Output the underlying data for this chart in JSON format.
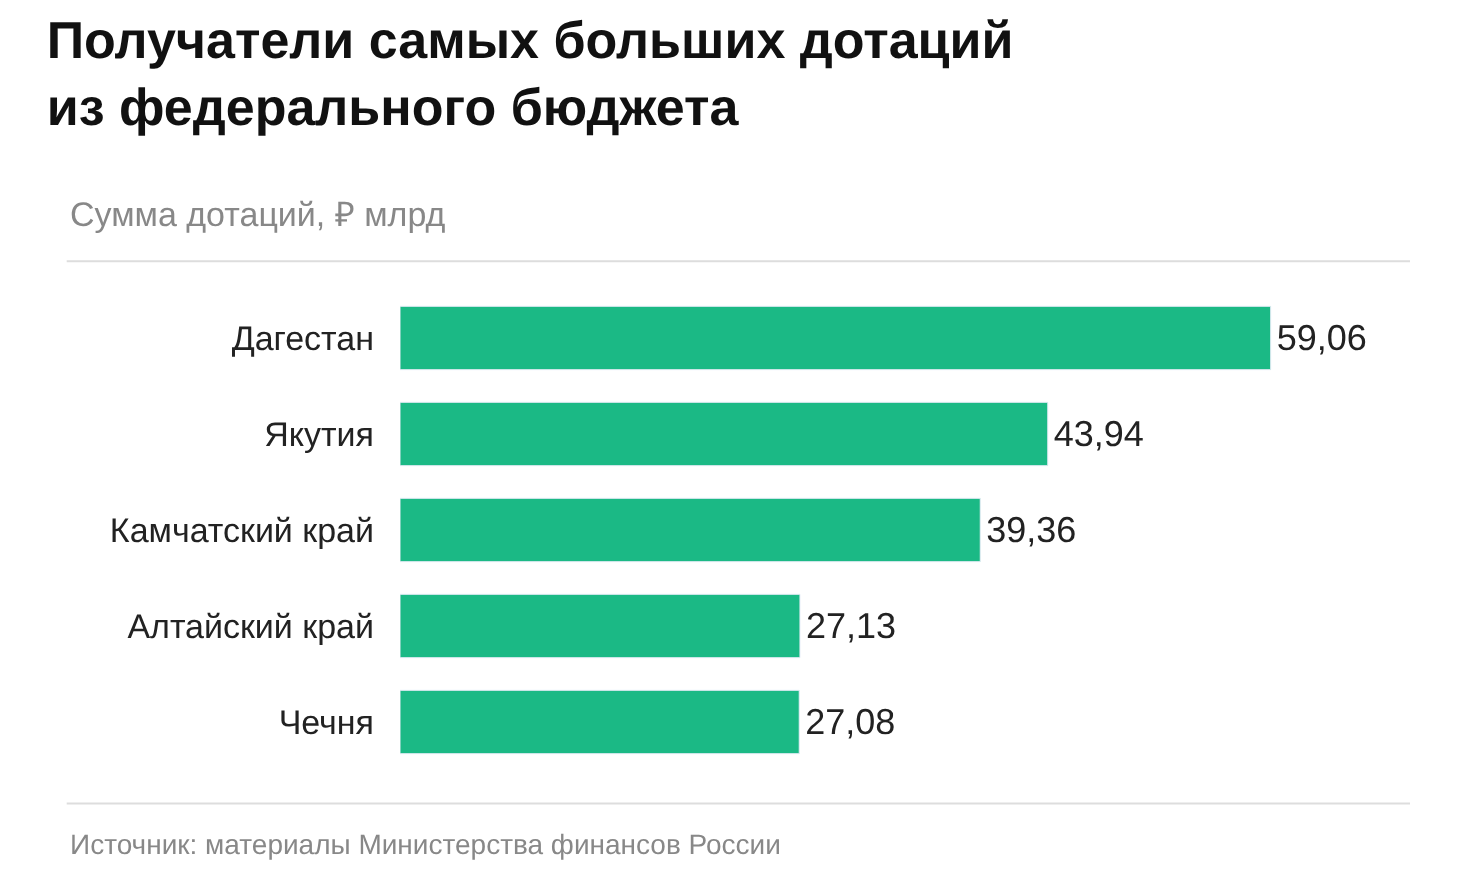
{
  "chart_data": {
    "type": "bar",
    "orientation": "horizontal",
    "title": "Получатели самых больших дотаций\nиз федерального бюджета",
    "subtitle": "Сумма дотаций, ₽ млрд",
    "categories": [
      "Дагестан",
      "Якутия",
      "Камчатский край",
      "Алтайский край",
      "Чечня"
    ],
    "values": [
      59.06,
      43.94,
      39.36,
      27.13,
      27.08
    ],
    "value_labels": [
      "59,06",
      "43,94",
      "39,36",
      "27,13",
      "27,08"
    ],
    "color": "#1bb985",
    "annotations": [
      "Источник: материалы Министерства финансов России"
    ]
  }
}
